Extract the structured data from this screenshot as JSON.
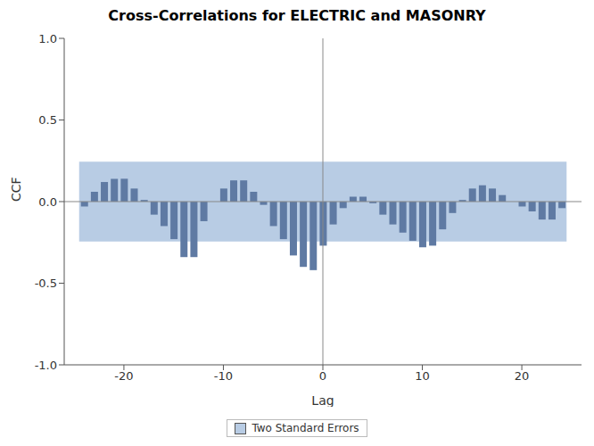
{
  "chart_data": {
    "type": "bar",
    "title": "Cross-Correlations for ELECTRIC and MASONRY",
    "x_label": "Lag",
    "y_label": "CCF",
    "x": [
      -24,
      -23,
      -22,
      -21,
      -20,
      -19,
      -18,
      -17,
      -16,
      -15,
      -14,
      -13,
      -12,
      -11,
      -10,
      -9,
      -8,
      -7,
      -6,
      -5,
      -4,
      -3,
      -2,
      -1,
      0,
      1,
      2,
      3,
      4,
      5,
      6,
      7,
      8,
      9,
      10,
      11,
      12,
      13,
      14,
      15,
      16,
      17,
      18,
      19,
      20,
      21,
      22,
      23,
      24
    ],
    "values": [
      -0.03,
      0.06,
      0.12,
      0.14,
      0.14,
      0.08,
      0.01,
      -0.08,
      -0.15,
      -0.23,
      -0.34,
      -0.34,
      -0.12,
      0.0,
      0.08,
      0.13,
      0.13,
      0.06,
      -0.02,
      -0.15,
      -0.23,
      -0.33,
      -0.4,
      -0.42,
      -0.27,
      -0.14,
      -0.04,
      0.03,
      0.03,
      -0.01,
      -0.08,
      -0.14,
      -0.19,
      -0.24,
      -0.28,
      -0.27,
      -0.17,
      -0.07,
      0.01,
      0.08,
      0.1,
      0.08,
      0.04,
      0.0,
      -0.03,
      -0.06,
      -0.11,
      -0.11,
      -0.04
    ],
    "color": "#5f7aa3",
    "xlim": [
      -26,
      26
    ],
    "xticks": [
      -20,
      -10,
      0,
      10,
      20
    ],
    "ylim": [
      -1,
      1
    ],
    "yticks": [
      {
        "value": -1,
        "label": "-1.0"
      },
      -0.5,
      {
        "value": 0,
        "label": "0.0"
      },
      0.5,
      {
        "value": 1,
        "label": "1.0"
      }
    ],
    "band": {
      "name": "Two Standard Errors",
      "lower": -0.245,
      "upper": 0.245,
      "x_range": [
        -24.5,
        24.5
      ],
      "color": "#b8cce4"
    },
    "legend": "bottom",
    "grid": false
  }
}
